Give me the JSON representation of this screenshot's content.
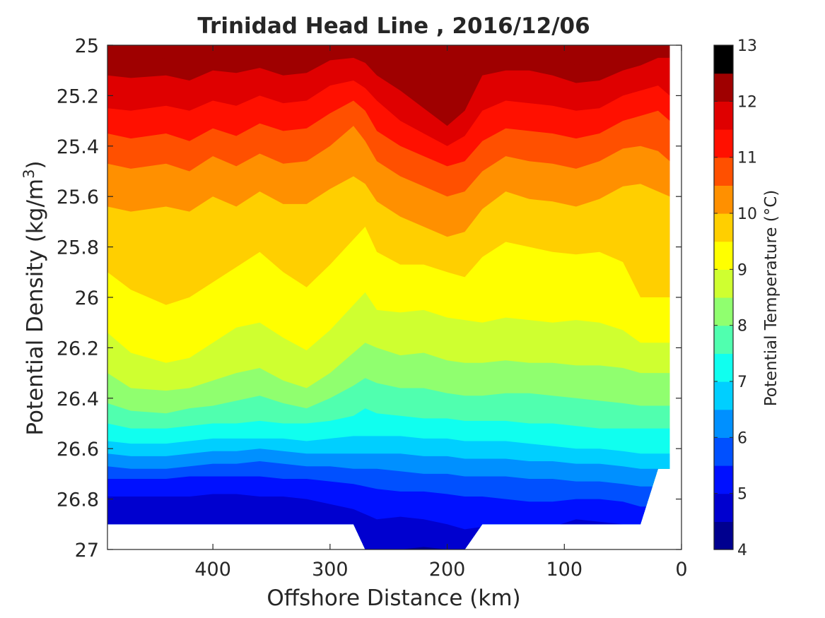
{
  "chart_data": {
    "type": "heatmap",
    "subtype": "filled-contour",
    "title": "Trinidad Head Line , 2016/12/06",
    "xlabel": "Offshore Distance (km)",
    "ylabel": {
      "main": "Potential Density (kg/m",
      "superscript": "3",
      "close": ")"
    },
    "x_ticks": [
      "400",
      "300",
      "200",
      "100",
      "0"
    ],
    "y_ticks": [
      "25",
      "25.2",
      "25.4",
      "25.6",
      "25.8",
      "26",
      "26.2",
      "26.4",
      "26.6",
      "26.8",
      "27"
    ],
    "xlim": [
      490,
      0
    ],
    "x_reversed": true,
    "ylim": [
      25,
      27
    ],
    "y_reversed": true,
    "colorbar": {
      "label": "Potential Temperature (°C)",
      "ticks": [
        "4",
        "5",
        "6",
        "7",
        "8",
        "9",
        "10",
        "11",
        "12",
        "13"
      ],
      "range": [
        4,
        13
      ],
      "step": 0.5,
      "colors": [
        "#00008f",
        "#0000cf",
        "#0010ff",
        "#0050ff",
        "#0090ff",
        "#00cfff",
        "#10ffef",
        "#50ffaf",
        "#90ff6f",
        "#cfff30",
        "#ffff00",
        "#ffcf00",
        "#ff9000",
        "#ff5000",
        "#ff1000",
        "#df0000",
        "#9f0000"
      ]
    },
    "stations_x": [
      490,
      470,
      440,
      420,
      400,
      380,
      360,
      340,
      320,
      300,
      280,
      270,
      260,
      240,
      220,
      200,
      185,
      170,
      150,
      130,
      110,
      90,
      70,
      50,
      35,
      20,
      10
    ],
    "bottom_density": [
      26.9,
      26.9,
      26.9,
      26.9,
      26.9,
      26.9,
      26.9,
      26.9,
      26.9,
      26.9,
      26.9,
      27.0,
      27.0,
      27.0,
      27.0,
      27.0,
      27.0,
      26.9,
      26.9,
      26.9,
      26.9,
      26.9,
      26.9,
      26.9,
      26.9,
      26.68,
      26.68
    ],
    "top_density": 25.0,
    "isotherms": [
      {
        "temp": 12.5,
        "density": [
          25.06,
          25.06,
          25.05,
          25.05,
          25.05,
          25.06,
          25.04,
          25.05,
          25.04,
          25.02,
          25.01,
          25.0,
          25.02,
          25.04,
          25.1,
          25.15,
          25.12,
          25.03,
          25.0,
          25.0,
          25.03,
          25.08,
          25.05,
          25.02,
          25.0,
          25.0,
          25.0
        ]
      },
      {
        "temp": 12.0,
        "density": [
          25.12,
          25.13,
          25.12,
          25.14,
          25.1,
          25.11,
          25.09,
          25.12,
          25.11,
          25.06,
          25.05,
          25.07,
          25.12,
          25.18,
          25.25,
          25.32,
          25.26,
          25.12,
          25.1,
          25.1,
          25.12,
          25.15,
          25.14,
          25.1,
          25.08,
          25.05,
          25.05
        ]
      },
      {
        "temp": 11.5,
        "density": [
          25.25,
          25.26,
          25.24,
          25.26,
          25.22,
          25.24,
          25.2,
          25.23,
          25.22,
          25.16,
          25.14,
          25.17,
          25.22,
          25.3,
          25.35,
          25.4,
          25.36,
          25.26,
          25.22,
          25.23,
          25.24,
          25.26,
          25.25,
          25.2,
          25.18,
          25.16,
          25.2
        ]
      },
      {
        "temp": 11.0,
        "density": [
          25.35,
          25.37,
          25.35,
          25.38,
          25.33,
          25.36,
          25.31,
          25.34,
          25.33,
          25.27,
          25.22,
          25.26,
          25.34,
          25.4,
          25.44,
          25.48,
          25.46,
          25.38,
          25.33,
          25.34,
          25.35,
          25.37,
          25.35,
          25.3,
          25.28,
          25.26,
          25.3
        ]
      },
      {
        "temp": 10.5,
        "density": [
          25.47,
          25.49,
          25.47,
          25.5,
          25.44,
          25.48,
          25.43,
          25.47,
          25.46,
          25.4,
          25.32,
          25.38,
          25.46,
          25.52,
          25.56,
          25.6,
          25.58,
          25.5,
          25.44,
          25.46,
          25.47,
          25.49,
          25.46,
          25.41,
          25.4,
          25.42,
          25.46
        ]
      },
      {
        "temp": 10.0,
        "density": [
          25.64,
          25.66,
          25.64,
          25.66,
          25.6,
          25.64,
          25.58,
          25.63,
          25.63,
          25.57,
          25.52,
          25.55,
          25.62,
          25.68,
          25.72,
          25.76,
          25.74,
          25.65,
          25.58,
          25.61,
          25.62,
          25.64,
          25.61,
          25.56,
          25.55,
          25.58,
          25.6
        ]
      },
      {
        "temp": 9.5,
        "density": [
          25.9,
          25.97,
          26.03,
          26.0,
          25.94,
          25.88,
          25.82,
          25.9,
          25.96,
          25.87,
          25.77,
          25.72,
          25.82,
          25.87,
          25.87,
          25.9,
          25.92,
          25.84,
          25.78,
          25.8,
          25.82,
          25.83,
          25.82,
          25.86,
          26.0,
          26.0,
          26.0
        ]
      },
      {
        "temp": 9.0,
        "density": [
          26.14,
          26.22,
          26.26,
          26.24,
          26.18,
          26.12,
          26.1,
          26.16,
          26.21,
          26.13,
          26.03,
          25.98,
          26.05,
          26.06,
          26.05,
          26.08,
          26.09,
          26.1,
          26.08,
          26.09,
          26.1,
          26.09,
          26.1,
          26.13,
          26.18,
          26.18,
          26.18
        ]
      },
      {
        "temp": 8.5,
        "density": [
          26.3,
          26.36,
          26.37,
          26.36,
          26.33,
          26.3,
          26.28,
          26.33,
          26.36,
          26.3,
          26.22,
          26.18,
          26.2,
          26.23,
          26.22,
          26.25,
          26.26,
          26.26,
          26.25,
          26.26,
          26.26,
          26.27,
          26.27,
          26.28,
          26.3,
          26.3,
          26.3
        ]
      },
      {
        "temp": 8.0,
        "density": [
          26.42,
          26.45,
          26.46,
          26.44,
          26.43,
          26.41,
          26.39,
          26.42,
          26.44,
          26.4,
          26.35,
          26.32,
          26.34,
          26.36,
          26.36,
          26.38,
          26.39,
          26.39,
          26.38,
          26.38,
          26.39,
          26.4,
          26.41,
          26.42,
          26.43,
          26.43,
          26.43
        ]
      },
      {
        "temp": 7.5,
        "density": [
          26.5,
          26.52,
          26.52,
          26.51,
          26.5,
          26.5,
          26.49,
          26.5,
          26.5,
          26.49,
          26.47,
          26.44,
          26.46,
          26.47,
          26.48,
          26.48,
          26.49,
          26.49,
          26.49,
          26.5,
          26.5,
          26.51,
          26.52,
          26.52,
          26.52,
          26.52,
          26.52
        ]
      },
      {
        "temp": 7.0,
        "density": [
          26.57,
          26.58,
          26.58,
          26.57,
          26.56,
          26.56,
          26.56,
          26.56,
          26.57,
          26.56,
          26.55,
          26.55,
          26.55,
          26.55,
          26.56,
          26.56,
          26.57,
          26.57,
          26.57,
          26.58,
          26.59,
          26.6,
          26.6,
          26.61,
          26.62,
          26.62,
          26.62
        ]
      },
      {
        "temp": 6.5,
        "density": [
          26.62,
          26.63,
          26.63,
          26.62,
          26.61,
          26.61,
          26.6,
          26.61,
          26.62,
          26.62,
          26.62,
          26.62,
          26.62,
          26.62,
          26.63,
          26.63,
          26.64,
          26.64,
          26.64,
          26.65,
          26.65,
          26.66,
          26.66,
          26.67,
          26.68,
          26.68,
          26.68
        ]
      },
      {
        "temp": 6.0,
        "density": [
          26.67,
          26.68,
          26.68,
          26.67,
          26.66,
          26.66,
          26.65,
          26.66,
          26.67,
          26.67,
          26.68,
          26.68,
          26.68,
          26.69,
          26.7,
          26.7,
          26.71,
          26.71,
          26.71,
          26.72,
          26.72,
          26.73,
          26.73,
          26.74,
          26.75,
          26.75,
          26.75
        ]
      },
      {
        "temp": 5.5,
        "density": [
          26.72,
          26.72,
          26.72,
          26.71,
          26.71,
          26.71,
          26.71,
          26.72,
          26.72,
          26.73,
          26.74,
          26.75,
          26.76,
          26.77,
          26.77,
          26.78,
          26.79,
          26.79,
          26.8,
          26.81,
          26.81,
          26.8,
          26.8,
          26.81,
          26.83,
          26.83,
          26.83
        ]
      },
      {
        "temp": 5.0,
        "density": [
          26.79,
          26.79,
          26.79,
          26.79,
          26.78,
          26.78,
          26.79,
          26.79,
          26.8,
          26.82,
          26.84,
          26.86,
          26.88,
          26.87,
          26.88,
          26.9,
          26.92,
          26.91,
          26.92,
          26.92,
          26.91,
          26.88,
          26.89,
          26.9,
          26.9,
          26.9,
          26.9
        ]
      },
      {
        "temp": 4.5,
        "density": [
          27.1,
          27.1,
          27.1,
          27.1,
          27.1,
          27.1,
          27.1,
          27.1,
          27.1,
          27.1,
          27.1,
          27.1,
          27.1,
          27.0,
          26.99,
          27.0,
          27.1,
          27.1,
          27.1,
          27.1,
          27.1,
          27.1,
          27.1,
          27.1,
          27.1,
          27.1,
          27.1
        ]
      }
    ]
  }
}
